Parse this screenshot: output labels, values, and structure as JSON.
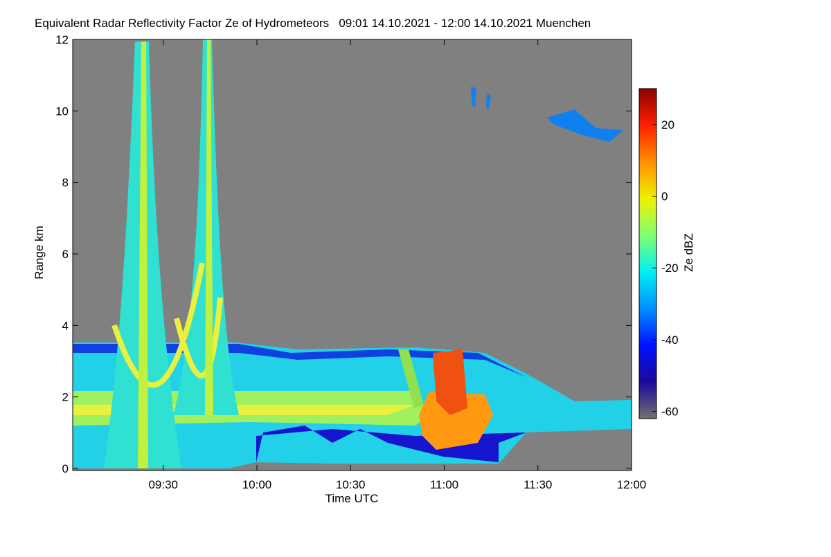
{
  "chart_data": {
    "type": "heatmap",
    "title": "Equivalent Radar Reflectivity Factor Ze of Hydrometeors   09:01 14.10.2021 - 12:00 14.10.2021 Muenchen",
    "xlabel": "Time UTC",
    "ylabel": "Range km",
    "xlim": [
      9.0167,
      12
    ],
    "xticks": [
      {
        "value": 9.5,
        "label": "09:30"
      },
      {
        "value": 10,
        "label": "10:00"
      },
      {
        "value": 10.5,
        "label": "10:30"
      },
      {
        "value": 11,
        "label": "11:00"
      },
      {
        "value": 11.5,
        "label": "11:30"
      },
      {
        "value": 12,
        "label": "12:00"
      }
    ],
    "ylim": [
      0,
      12
    ],
    "yticks": [
      0,
      2,
      4,
      6,
      8,
      10,
      12
    ],
    "colorbar_label": "Ze dBZ",
    "clim": [
      -62,
      30
    ],
    "cticks": [
      -60,
      -40,
      -20,
      0,
      20
    ],
    "colormap": [
      "#707070",
      "#1a0a9a",
      "#0010ff",
      "#0090ff",
      "#00f0f0",
      "#80ff70",
      "#f0f000",
      "#ff9000",
      "#ff2000",
      "#8a0000"
    ],
    "background": "#808080"
  }
}
